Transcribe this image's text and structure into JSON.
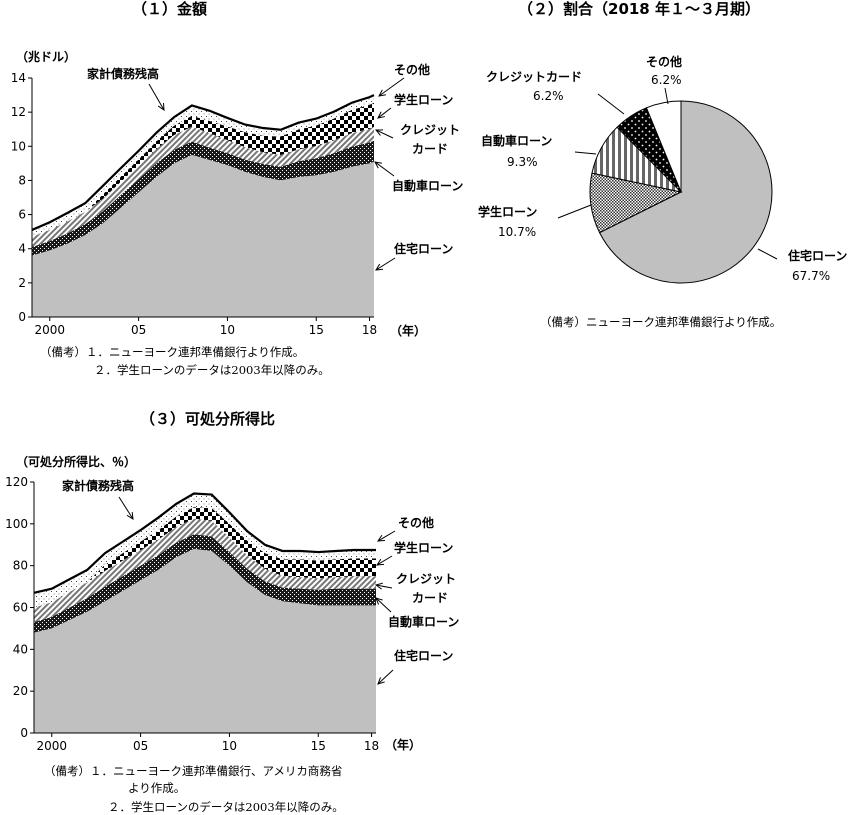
{
  "colors": {
    "housing": "#c0c0c0",
    "auto": "#111111",
    "credit": "#9a9a9a",
    "student": "#111111",
    "other": "#ffffff",
    "line": "#000000"
  },
  "chart_data": [
    {
      "type": "area",
      "title": "（１）金額",
      "ylabel": "（兆ドル）",
      "xunit": "（年）",
      "ylim": [
        0,
        14
      ],
      "yticks": [
        0,
        2,
        4,
        6,
        8,
        10,
        12,
        14
      ],
      "xticks": [
        {
          "x": 2000,
          "label": "2000"
        },
        {
          "x": 2005,
          "label": "05"
        },
        {
          "x": 2010,
          "label": "10"
        },
        {
          "x": 2015,
          "label": "15"
        },
        {
          "x": 2018,
          "label": "18"
        }
      ],
      "xlim": [
        1999.0,
        2018.25
      ],
      "x": [
        1999.0,
        2000.0,
        2001.0,
        2002.0,
        2003.0,
        2004.0,
        2005.0,
        2006.0,
        2007.0,
        2008.0,
        2009.0,
        2010.0,
        2011.0,
        2012.0,
        2013.0,
        2014.0,
        2015.0,
        2016.0,
        2017.0,
        2018.0,
        2018.25
      ],
      "series": [
        {
          "name": "住宅ローン",
          "key": "housing",
          "values": [
            3.6,
            3.9,
            4.3,
            4.8,
            5.5,
            6.4,
            7.3,
            8.2,
            9.0,
            9.5,
            9.2,
            8.9,
            8.5,
            8.2,
            8.0,
            8.2,
            8.3,
            8.5,
            8.8,
            9.0,
            9.1
          ]
        },
        {
          "name": "自動車ローン",
          "key": "auto",
          "values": [
            0.5,
            0.55,
            0.6,
            0.65,
            0.7,
            0.75,
            0.78,
            0.8,
            0.8,
            0.78,
            0.72,
            0.7,
            0.72,
            0.76,
            0.8,
            0.92,
            1.0,
            1.1,
            1.18,
            1.22,
            1.23
          ]
        },
        {
          "name": "クレジットカード",
          "key": "credit",
          "values": [
            0.6,
            0.65,
            0.7,
            0.72,
            0.74,
            0.77,
            0.8,
            0.84,
            0.86,
            0.87,
            0.84,
            0.76,
            0.72,
            0.69,
            0.69,
            0.7,
            0.72,
            0.75,
            0.79,
            0.81,
            0.81
          ]
        },
        {
          "name": "学生ローン",
          "key": "student",
          "values": [
            0.0,
            0.0,
            0.0,
            0.0,
            0.25,
            0.3,
            0.35,
            0.45,
            0.55,
            0.64,
            0.72,
            0.8,
            0.88,
            0.97,
            1.08,
            1.16,
            1.2,
            1.28,
            1.36,
            1.4,
            1.41
          ]
        },
        {
          "name": "その他",
          "key": "other",
          "values": [
            0.4,
            0.45,
            0.5,
            0.5,
            0.5,
            0.5,
            0.5,
            0.5,
            0.5,
            0.6,
            0.6,
            0.5,
            0.45,
            0.45,
            0.4,
            0.4,
            0.4,
            0.4,
            0.42,
            0.45,
            0.45
          ]
        }
      ],
      "total_name": "家計債務残高",
      "notes": [
        "（備考）１．ニューヨーク連邦準備銀行より作成。",
        "２．学生ローンのデータは2003年以降のみ。"
      ]
    },
    {
      "type": "pie",
      "title": "（２）割合（2018 年１～３月期）",
      "slices": [
        {
          "name": "住宅ローン",
          "key": "housing",
          "value": 67.7,
          "label": "67.7%"
        },
        {
          "name": "学生ローン",
          "key": "student",
          "value": 10.7,
          "label": "10.7%"
        },
        {
          "name": "自動車ローン",
          "key": "auto",
          "value": 9.3,
          "label": "9.3%"
        },
        {
          "name": "クレジットカード",
          "key": "credit",
          "value": 6.2,
          "label": "6.2%"
        },
        {
          "name": "その他",
          "key": "other",
          "value": 6.2,
          "label": "6.2%"
        }
      ],
      "notes": [
        "（備考）ニューヨーク連邦準備銀行より作成。"
      ]
    },
    {
      "type": "area",
      "title": "（３）可処分所得比",
      "ylabel": "（可処分所得比、％）",
      "xunit": "（年）",
      "ylim": [
        0,
        120
      ],
      "yticks": [
        0,
        20,
        40,
        60,
        80,
        100,
        120
      ],
      "xticks": [
        {
          "x": 2000,
          "label": "2000"
        },
        {
          "x": 2005,
          "label": "05"
        },
        {
          "x": 2010,
          "label": "10"
        },
        {
          "x": 2015,
          "label": "15"
        },
        {
          "x": 2018,
          "label": "18"
        }
      ],
      "xlim": [
        1999.0,
        2018.25
      ],
      "x": [
        1999.0,
        2000.0,
        2001.0,
        2002.0,
        2003.0,
        2004.0,
        2005.0,
        2006.0,
        2007.0,
        2008.0,
        2009.0,
        2010.0,
        2011.0,
        2012.0,
        2013.0,
        2014.0,
        2015.0,
        2016.0,
        2017.0,
        2018.0,
        2018.25
      ],
      "series": [
        {
          "name": "住宅ローン",
          "key": "housing",
          "values": [
            48,
            50,
            54,
            58,
            63,
            68,
            73,
            78,
            84,
            88,
            87,
            80,
            72,
            66,
            63,
            62,
            61,
            61,
            61,
            61,
            61
          ]
        },
        {
          "name": "自動車ローン",
          "key": "auto",
          "values": [
            5,
            5.5,
            6,
            6.5,
            7,
            7,
            7,
            7,
            7,
            7,
            7,
            6.5,
            6.5,
            6.5,
            6.5,
            7,
            7.5,
            8,
            8,
            8,
            8
          ]
        },
        {
          "name": "クレジットカード",
          "key": "credit",
          "values": [
            7,
            7,
            7.5,
            7.5,
            7.5,
            7.5,
            7.5,
            7.5,
            7.5,
            7.5,
            7.5,
            7,
            6.5,
            6,
            5.5,
            5.5,
            5.5,
            5.5,
            6,
            6,
            6
          ]
        },
        {
          "name": "学生ローン",
          "key": "student",
          "values": [
            0,
            0,
            0,
            0,
            3,
            3.5,
            4,
            4.5,
            5,
            5.5,
            6,
            6.5,
            7,
            7.5,
            8,
            8.5,
            8.5,
            8.5,
            8.5,
            8.5,
            8.5
          ]
        },
        {
          "name": "その他",
          "key": "other",
          "values": [
            7,
            6.5,
            6,
            6,
            5.5,
            5.5,
            5.5,
            6,
            6,
            6.5,
            6.5,
            5.5,
            4.5,
            4,
            4,
            4,
            4,
            4,
            4,
            4,
            4
          ]
        }
      ],
      "total_name": "家計債務残高",
      "notes": [
        "（備考）１．ニューヨーク連邦準備銀行、アメリカ商務省",
        "より作成。",
        "２．学生ローンのデータは2003年以降のみ。"
      ]
    }
  ]
}
